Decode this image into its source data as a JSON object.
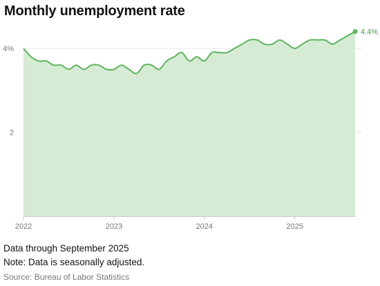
{
  "title": "Monthly unemployment rate",
  "notes": {
    "data_through": "Data through September 2025",
    "adjusted": "Note: Data is seasonally adjusted.",
    "source": "Source: Bureau of Labor Statistics"
  },
  "colors": {
    "line": "#5fb35f",
    "fill": "#d5ebd3",
    "grid": "#e4e4e4",
    "end_label": "#4a9e4a"
  },
  "chart_data": {
    "type": "area",
    "title": "Monthly unemployment rate",
    "xlabel": "",
    "ylabel": "",
    "ylim": [
      0,
      4.4
    ],
    "y_ticks": [
      {
        "value": 2,
        "label": "2"
      },
      {
        "value": 4,
        "label": "4%"
      }
    ],
    "x_ticks": [
      {
        "value": "2022-01",
        "label": "2022"
      },
      {
        "value": "2023-01",
        "label": "2023"
      },
      {
        "value": "2024-01",
        "label": "2024"
      },
      {
        "value": "2025-01",
        "label": "2025"
      }
    ],
    "grid": true,
    "end_label": "4.4%",
    "series": [
      {
        "x": [
          "2022-01",
          "2022-02",
          "2022-03",
          "2022-04",
          "2022-05",
          "2022-06",
          "2022-07",
          "2022-08",
          "2022-09",
          "2022-10",
          "2022-11",
          "2022-12",
          "2023-01",
          "2023-02",
          "2023-03",
          "2023-04",
          "2023-05",
          "2023-06",
          "2023-07",
          "2023-08",
          "2023-09",
          "2023-10",
          "2023-11",
          "2023-12",
          "2024-01",
          "2024-02",
          "2024-03",
          "2024-04",
          "2024-05",
          "2024-06",
          "2024-07",
          "2024-08",
          "2024-09",
          "2024-10",
          "2024-11",
          "2024-12",
          "2025-01",
          "2025-02",
          "2025-03",
          "2025-04",
          "2025-05",
          "2025-06",
          "2025-07",
          "2025-08",
          "2025-09"
        ],
        "values": [
          4.0,
          3.8,
          3.7,
          3.7,
          3.6,
          3.6,
          3.5,
          3.6,
          3.5,
          3.6,
          3.6,
          3.5,
          3.5,
          3.6,
          3.5,
          3.4,
          3.6,
          3.6,
          3.5,
          3.7,
          3.8,
          3.9,
          3.7,
          3.8,
          3.7,
          3.9,
          3.9,
          3.9,
          4.0,
          4.1,
          4.2,
          4.2,
          4.1,
          4.1,
          4.2,
          4.1,
          4.0,
          4.1,
          4.2,
          4.2,
          4.2,
          4.1,
          4.2,
          4.3,
          4.4
        ]
      }
    ]
  }
}
